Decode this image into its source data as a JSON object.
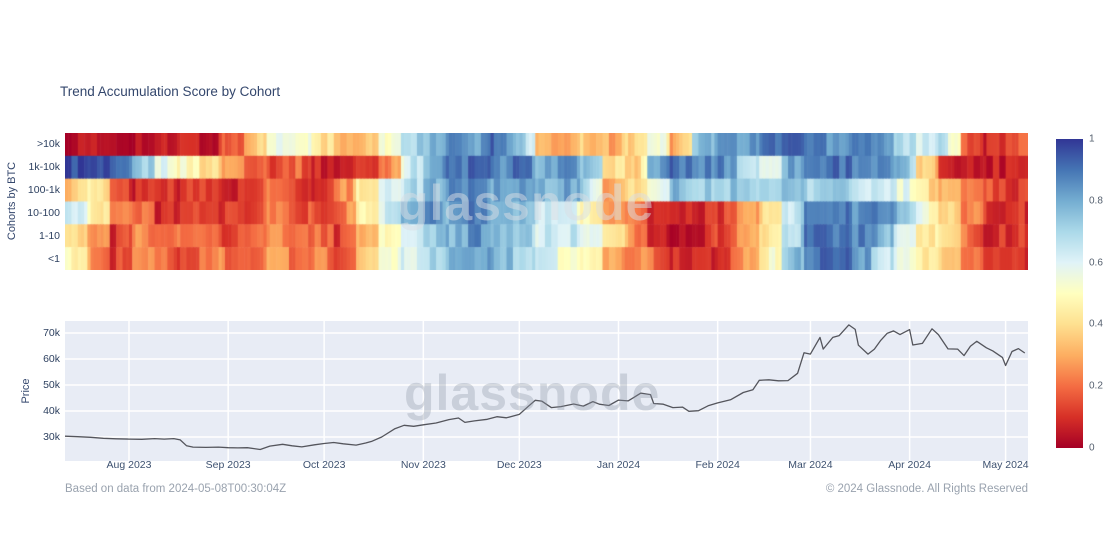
{
  "title": "Trend Accumulation Score by Cohort",
  "watermark_text": "glassnode",
  "footer": {
    "left": "Based on data from 2024-05-08T00:30:04Z",
    "right": "© 2024 Glassnode. All Rights Reserved"
  },
  "colors": {
    "title_text": "#34476d",
    "axis_label_text": "#3d5170",
    "plot_background": "#e8ecf5",
    "gridline": "#ffffff",
    "price_line": "#54555c",
    "footer_text": "#99a2ae"
  },
  "chart_data": [
    {
      "type": "heatmap",
      "title": "Trend Accumulation Score by Cohort",
      "ylabel": "Cohorts by BTC",
      "categories_y": [
        ">10k",
        "1k-10k",
        "100-1k",
        "10-100",
        "1-10",
        "<1"
      ],
      "x_range_days": 301,
      "week_length_days": 7,
      "x_ticks": [
        {
          "label": "Aug 2023",
          "day": 20
        },
        {
          "label": "Sep 2023",
          "day": 51
        },
        {
          "label": "Oct 2023",
          "day": 81
        },
        {
          "label": "Nov 2023",
          "day": 112
        },
        {
          "label": "Dec 2023",
          "day": 142
        },
        {
          "label": "Jan 2024",
          "day": 173
        },
        {
          "label": "Feb 2024",
          "day": 204
        },
        {
          "label": "Mar 2024",
          "day": 233
        },
        {
          "label": "Apr 2024",
          "day": 264
        },
        {
          "label": "May 2024",
          "day": 294
        }
      ],
      "zmin": 0,
      "zmax": 1,
      "colorbar_ticks": [
        "1",
        "0.8",
        "0.6",
        "0.4",
        "0.2",
        "0"
      ],
      "colorscale": {
        "name": "RdYlBu",
        "stops": [
          [
            0.0,
            "#a50026"
          ],
          [
            0.1,
            "#d73027"
          ],
          [
            0.2,
            "#f46d43"
          ],
          [
            0.3,
            "#fdae61"
          ],
          [
            0.4,
            "#fee090"
          ],
          [
            0.5,
            "#ffffbf"
          ],
          [
            0.6,
            "#e0f3f8"
          ],
          [
            0.7,
            "#abd9e9"
          ],
          [
            0.8,
            "#74add1"
          ],
          [
            0.9,
            "#4575b4"
          ],
          [
            1.0,
            "#313695"
          ]
        ]
      },
      "series": [
        {
          "name": ">10k",
          "values": [
            0.04,
            0.03,
            0.05,
            0.04,
            0.03,
            0.08,
            0.04,
            0.15,
            0.3,
            0.55,
            0.6,
            0.45,
            0.3,
            0.3,
            0.5,
            0.7,
            0.75,
            0.85,
            0.8,
            0.9,
            0.8,
            0.3,
            0.25,
            0.35,
            0.3,
            0.35,
            0.6,
            0.3,
            0.75,
            0.85,
            0.8,
            0.9,
            0.95,
            0.9,
            0.85,
            0.9,
            0.9,
            0.7,
            0.6,
            0.68,
            0.2,
            0.08,
            0.15
          ]
        },
        {
          "name": "1k-10k",
          "values": [
            0.97,
            0.95,
            0.88,
            0.75,
            0.6,
            0.5,
            0.42,
            0.3,
            0.22,
            0.15,
            0.2,
            0.08,
            0.06,
            0.1,
            0.2,
            0.6,
            0.8,
            0.88,
            0.92,
            0.85,
            0.9,
            0.8,
            0.85,
            0.75,
            0.45,
            0.3,
            0.8,
            0.9,
            0.85,
            0.9,
            0.7,
            0.55,
            0.8,
            0.88,
            0.92,
            0.9,
            0.85,
            0.8,
            0.4,
            0.12,
            0.05,
            0.06,
            0.1
          ]
        },
        {
          "name": "100-1k",
          "values": [
            0.35,
            0.45,
            0.15,
            0.08,
            0.15,
            0.1,
            0.12,
            0.08,
            0.12,
            0.2,
            0.15,
            0.08,
            0.22,
            0.42,
            0.6,
            0.65,
            0.78,
            0.85,
            0.9,
            0.82,
            0.85,
            0.78,
            0.82,
            0.7,
            0.3,
            0.35,
            0.55,
            0.8,
            0.7,
            0.75,
            0.7,
            0.75,
            0.75,
            0.7,
            0.75,
            0.68,
            0.62,
            0.6,
            0.42,
            0.3,
            0.25,
            0.15,
            0.12
          ]
        },
        {
          "name": "10-100",
          "values": [
            0.65,
            0.5,
            0.25,
            0.2,
            0.1,
            0.12,
            0.08,
            0.1,
            0.12,
            0.22,
            0.18,
            0.12,
            0.18,
            0.42,
            0.6,
            0.78,
            0.85,
            0.8,
            0.88,
            0.82,
            0.8,
            0.65,
            0.6,
            0.5,
            0.3,
            0.25,
            0.08,
            0.05,
            0.08,
            0.1,
            0.25,
            0.4,
            0.6,
            0.85,
            0.9,
            0.85,
            0.88,
            0.82,
            0.55,
            0.4,
            0.25,
            0.12,
            0.1
          ]
        },
        {
          "name": "1-10",
          "values": [
            0.45,
            0.28,
            0.1,
            0.25,
            0.15,
            0.2,
            0.25,
            0.15,
            0.18,
            0.25,
            0.2,
            0.22,
            0.1,
            0.28,
            0.45,
            0.62,
            0.7,
            0.78,
            0.85,
            0.8,
            0.75,
            0.62,
            0.65,
            0.6,
            0.4,
            0.28,
            0.1,
            0.05,
            0.08,
            0.12,
            0.25,
            0.42,
            0.65,
            0.88,
            0.92,
            0.88,
            0.85,
            0.6,
            0.45,
            0.38,
            0.22,
            0.1,
            0.1
          ]
        },
        {
          "name": "<1",
          "values": [
            0.5,
            0.3,
            0.1,
            0.3,
            0.2,
            0.15,
            0.25,
            0.2,
            0.15,
            0.28,
            0.22,
            0.25,
            0.08,
            0.3,
            0.48,
            0.6,
            0.68,
            0.75,
            0.82,
            0.78,
            0.72,
            0.62,
            0.52,
            0.48,
            0.3,
            0.25,
            0.2,
            0.1,
            0.06,
            0.1,
            0.28,
            0.45,
            0.7,
            0.9,
            0.92,
            0.88,
            0.7,
            0.55,
            0.42,
            0.35,
            0.2,
            0.08,
            0.1
          ]
        }
      ]
    },
    {
      "type": "line",
      "ylabel": "Price",
      "yaxis_unit": "k USD",
      "ylim": [
        20.8,
        74.6
      ],
      "yticks": [
        {
          "label": "70k",
          "value": 70
        },
        {
          "label": "60k",
          "value": 60
        },
        {
          "label": "50k",
          "value": 50
        },
        {
          "label": "40k",
          "value": 40
        },
        {
          "label": "30k",
          "value": 30
        }
      ],
      "x_ticks": [
        {
          "label": "Aug 2023",
          "day": 20
        },
        {
          "label": "Sep 2023",
          "day": 51
        },
        {
          "label": "Oct 2023",
          "day": 81
        },
        {
          "label": "Nov 2023",
          "day": 112
        },
        {
          "label": "Dec 2023",
          "day": 142
        },
        {
          "label": "Jan 2024",
          "day": 173
        },
        {
          "label": "Feb 2024",
          "day": 204
        },
        {
          "label": "Mar 2024",
          "day": 233
        },
        {
          "label": "Apr 2024",
          "day": 264
        },
        {
          "label": "May 2024",
          "day": 294
        }
      ],
      "points": [
        [
          0,
          30.3
        ],
        [
          4,
          30.1
        ],
        [
          8,
          29.9
        ],
        [
          12,
          29.5
        ],
        [
          16,
          29.3
        ],
        [
          20,
          29.2
        ],
        [
          24,
          29.1
        ],
        [
          28,
          29.4
        ],
        [
          31,
          29.2
        ],
        [
          34,
          29.4
        ],
        [
          36,
          28.9
        ],
        [
          38,
          26.6
        ],
        [
          40,
          26.1
        ],
        [
          44,
          26.0
        ],
        [
          48,
          26.1
        ],
        [
          51,
          25.9
        ],
        [
          54,
          25.8
        ],
        [
          57,
          25.9
        ],
        [
          61,
          25.2
        ],
        [
          64,
          26.5
        ],
        [
          68,
          27.2
        ],
        [
          71,
          26.6
        ],
        [
          74,
          26.2
        ],
        [
          78,
          27.0
        ],
        [
          81,
          27.5
        ],
        [
          84,
          27.9
        ],
        [
          87,
          27.4
        ],
        [
          91,
          26.9
        ],
        [
          94,
          27.7
        ],
        [
          96,
          28.4
        ],
        [
          99,
          30.0
        ],
        [
          103,
          33.1
        ],
        [
          106,
          34.5
        ],
        [
          109,
          34.1
        ],
        [
          112,
          34.7
        ],
        [
          116,
          35.4
        ],
        [
          120,
          36.7
        ],
        [
          123,
          37.3
        ],
        [
          125,
          35.6
        ],
        [
          128,
          36.2
        ],
        [
          132,
          36.8
        ],
        [
          135,
          37.8
        ],
        [
          138,
          37.4
        ],
        [
          142,
          38.7
        ],
        [
          145,
          42.0
        ],
        [
          147,
          44.1
        ],
        [
          149,
          43.8
        ],
        [
          152,
          41.3
        ],
        [
          155,
          41.7
        ],
        [
          159,
          42.7
        ],
        [
          162,
          41.9
        ],
        [
          165,
          43.6
        ],
        [
          167,
          42.6
        ],
        [
          170,
          42.1
        ],
        [
          173,
          44.2
        ],
        [
          176,
          43.9
        ],
        [
          180,
          46.9
        ],
        [
          183,
          46.3
        ],
        [
          184,
          42.9
        ],
        [
          187,
          42.6
        ],
        [
          190,
          41.3
        ],
        [
          193,
          41.5
        ],
        [
          195,
          39.9
        ],
        [
          198,
          40.1
        ],
        [
          201,
          42.0
        ],
        [
          204,
          43.1
        ],
        [
          208,
          44.3
        ],
        [
          212,
          47.1
        ],
        [
          215,
          48.2
        ],
        [
          217,
          51.8
        ],
        [
          220,
          52.0
        ],
        [
          223,
          51.6
        ],
        [
          226,
          51.7
        ],
        [
          229,
          54.5
        ],
        [
          231,
          62.4
        ],
        [
          233,
          61.9
        ],
        [
          236,
          68.3
        ],
        [
          237,
          63.8
        ],
        [
          240,
          68.3
        ],
        [
          242,
          69.0
        ],
        [
          245,
          73.1
        ],
        [
          247,
          71.4
        ],
        [
          248,
          65.3
        ],
        [
          251,
          61.9
        ],
        [
          253,
          63.8
        ],
        [
          255,
          67.2
        ],
        [
          257,
          69.9
        ],
        [
          259,
          70.8
        ],
        [
          261,
          69.4
        ],
        [
          264,
          71.3
        ],
        [
          265,
          65.4
        ],
        [
          268,
          66.0
        ],
        [
          271,
          71.6
        ],
        [
          273,
          69.4
        ],
        [
          276,
          63.9
        ],
        [
          279,
          63.8
        ],
        [
          281,
          61.3
        ],
        [
          283,
          64.9
        ],
        [
          285,
          66.8
        ],
        [
          288,
          64.3
        ],
        [
          290,
          63.1
        ],
        [
          293,
          60.6
        ],
        [
          294,
          57.5
        ],
        [
          296,
          62.9
        ],
        [
          298,
          64.0
        ],
        [
          300,
          62.3
        ]
      ]
    }
  ]
}
